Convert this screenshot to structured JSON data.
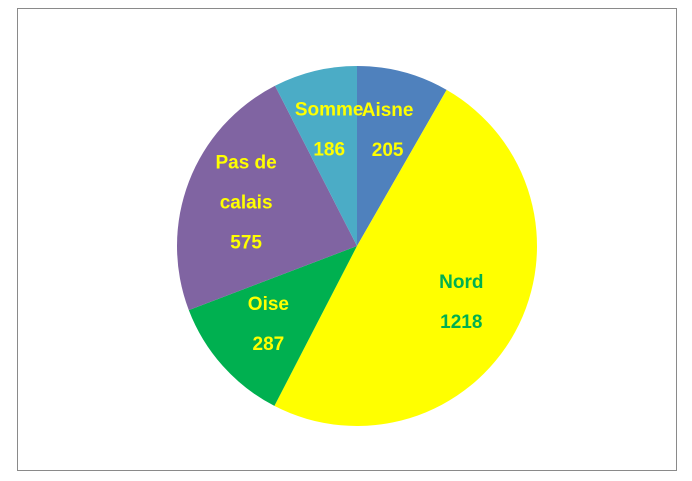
{
  "chart_data": {
    "type": "pie",
    "categories": [
      "Aisne",
      "Nord",
      "Oise",
      "Pas de calais",
      "Somme"
    ],
    "values": [
      205,
      1218,
      287,
      575,
      186
    ],
    "colors": [
      "#4f81bd",
      "#ffff00",
      "#00b050",
      "#8064a2",
      "#4bacc6"
    ],
    "label_colors": [
      "#ffff00",
      "#00b050",
      "#ffff00",
      "#ffff00",
      "#ffff00"
    ]
  }
}
